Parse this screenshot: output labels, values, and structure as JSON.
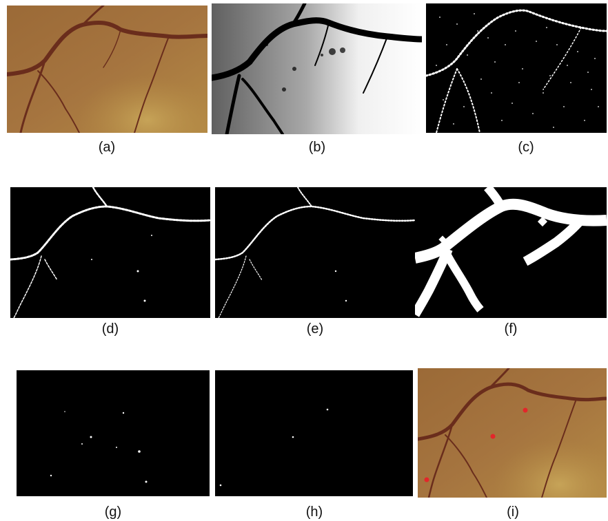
{
  "figure": {
    "panels": [
      {
        "id": "a",
        "caption": "(a)"
      },
      {
        "id": "b",
        "caption": "(b)"
      },
      {
        "id": "c",
        "caption": "(c)"
      },
      {
        "id": "d",
        "caption": "(d)"
      },
      {
        "id": "e",
        "caption": "(e)"
      },
      {
        "id": "f",
        "caption": "(f)"
      },
      {
        "id": "g",
        "caption": "(g)"
      },
      {
        "id": "h",
        "caption": "(h)"
      },
      {
        "id": "i",
        "caption": "(i)"
      }
    ]
  },
  "colors": {
    "fundus_background": "#a2753f",
    "vessel": "#6a2d1c",
    "mask_foreground": "#ffffff",
    "mask_background": "#000000",
    "marker": "#e3262a"
  }
}
